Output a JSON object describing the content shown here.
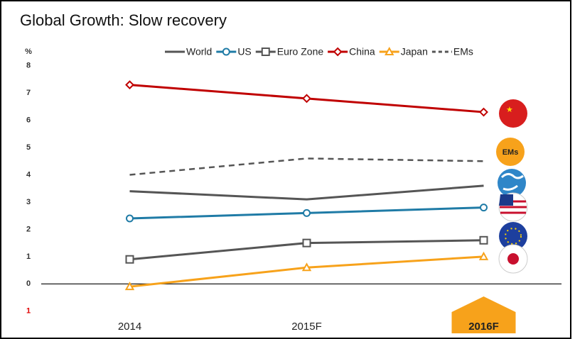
{
  "chart_data": {
    "type": "line",
    "title": "Global Growth: Slow recovery",
    "y_unit": "%",
    "categories": [
      "2014",
      "2015F",
      "2016F"
    ],
    "highlight_category": "2016F",
    "highlight_color": "#f7a21b",
    "annotations": [
      "EMs"
    ],
    "series": [
      {
        "name": "World",
        "color": "#555555",
        "marker": "none",
        "dash": "solid",
        "values": [
          3.4,
          3.1,
          3.6
        ]
      },
      {
        "name": "US",
        "color": "#1f7ba6",
        "marker": "circle",
        "dash": "solid",
        "values": [
          2.4,
          2.6,
          2.8
        ]
      },
      {
        "name": "Euro Zone",
        "color": "#555555",
        "marker": "square",
        "dash": "solid",
        "values": [
          0.9,
          1.5,
          1.6
        ]
      },
      {
        "name": "China",
        "color": "#c00000",
        "marker": "diamond",
        "dash": "solid",
        "values": [
          7.3,
          6.8,
          6.3
        ]
      },
      {
        "name": "Japan",
        "color": "#f7a21b",
        "marker": "triangle",
        "dash": "solid",
        "values": [
          -0.1,
          0.6,
          1.0
        ]
      },
      {
        "name": "EMs",
        "color": "#555555",
        "marker": "none",
        "dash": "dashed",
        "values": [
          4.0,
          4.6,
          4.5
        ]
      }
    ],
    "ylim": [
      -1.5,
      8.2
    ],
    "yticks": [
      {
        "value": -1,
        "label": "1",
        "color": "#e00000"
      },
      0,
      1,
      2,
      3,
      4,
      5,
      6,
      7,
      8
    ],
    "grid": false,
    "legend": "top"
  }
}
